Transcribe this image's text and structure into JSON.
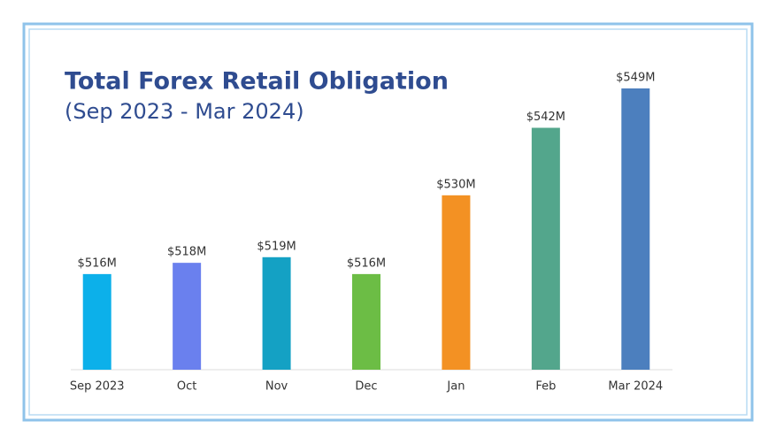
{
  "chart_data": {
    "type": "bar",
    "title": "Total Forex Retail Obligation",
    "subtitle": "(Sep 2023 - Mar 2024)",
    "categories": [
      "Sep 2023",
      "Oct",
      "Nov",
      "Dec",
      "Jan",
      "Feb",
      "Mar 2024"
    ],
    "values": [
      516,
      518,
      519,
      516,
      530,
      542,
      549
    ],
    "value_labels": [
      "$516M",
      "$518M",
      "$519M",
      "$516M",
      "$530M",
      "$542M",
      "$549M"
    ],
    "colors": [
      "#0cb0ea",
      "#6a80ee",
      "#14a1c4",
      "#6cbd45",
      "#f39123",
      "#53a68c",
      "#4c7fbe"
    ],
    "ylim": [
      499,
      560
    ]
  }
}
